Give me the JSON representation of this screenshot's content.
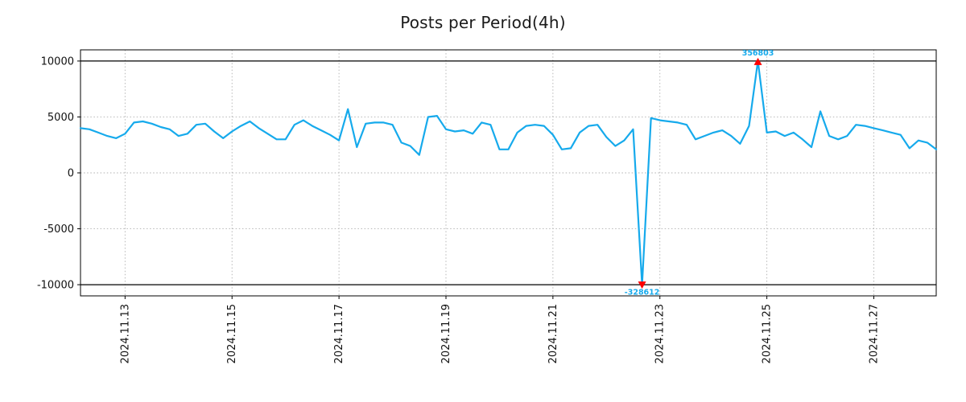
{
  "colors": {
    "line": "#16aaec",
    "marker": "#ff0000",
    "annotation": "#16aaec",
    "grid": "#b0b0b0",
    "axis": "#000000"
  },
  "chart_data": {
    "type": "line",
    "title": "Posts per Period(4h)",
    "xlabel": "",
    "ylabel": "",
    "grid": true,
    "legend": null,
    "x_label_rotation": 90,
    "ylim": [
      -11000,
      11000
    ],
    "clip": [
      -10000,
      10000
    ],
    "y_ticks": [
      {
        "value": 10000,
        "label": "10000"
      },
      {
        "value": 5000,
        "label": "5000"
      },
      {
        "value": 0,
        "label": "0"
      },
      {
        "value": -5000,
        "label": "-5000"
      },
      {
        "value": -10000,
        "label": "-10000"
      }
    ],
    "x_ticks": [
      {
        "index": 5,
        "label": "2024.11.13"
      },
      {
        "index": 17,
        "label": "2024.11.15"
      },
      {
        "index": 29,
        "label": "2024.11.17"
      },
      {
        "index": 41,
        "label": "2024.11.19"
      },
      {
        "index": 53,
        "label": "2024.11.21"
      },
      {
        "index": 65,
        "label": "2024.11.23"
      },
      {
        "index": 77,
        "label": "2024.11.25"
      },
      {
        "index": 89,
        "label": "2024.11.27"
      }
    ],
    "values": [
      4000,
      3900,
      3600,
      3300,
      3100,
      3500,
      4500,
      4600,
      4400,
      4100,
      3900,
      3300,
      3500,
      4300,
      4400,
      3700,
      3100,
      3700,
      4200,
      4600,
      4000,
      3500,
      3000,
      3000,
      4300,
      4700,
      4200,
      3800,
      3400,
      2900,
      5700,
      2300,
      4400,
      4500,
      4500,
      4300,
      2700,
      2400,
      1600,
      5000,
      5100,
      3900,
      3700,
      3800,
      3500,
      4500,
      4300,
      2100,
      2100,
      3600,
      4200,
      4300,
      4200,
      3400,
      2100,
      2200,
      3600,
      4200,
      4300,
      3200,
      2400,
      2900,
      3900,
      -328612,
      4900,
      4700,
      4600,
      4500,
      4300,
      3000,
      3300,
      3600,
      3800,
      3300,
      2600,
      4200,
      356803,
      3600,
      3700,
      3300,
      3600,
      3000,
      2300,
      5500,
      3300,
      3000,
      3300,
      4300,
      4200,
      4000,
      3800,
      3600,
      3400,
      2200,
      2900,
      2700,
      2100
    ],
    "annotations": [
      {
        "index": 63,
        "value": -328612,
        "label": "-328612",
        "direction": "down"
      },
      {
        "index": 76,
        "value": 356803,
        "label": "356803",
        "direction": "up"
      }
    ]
  }
}
